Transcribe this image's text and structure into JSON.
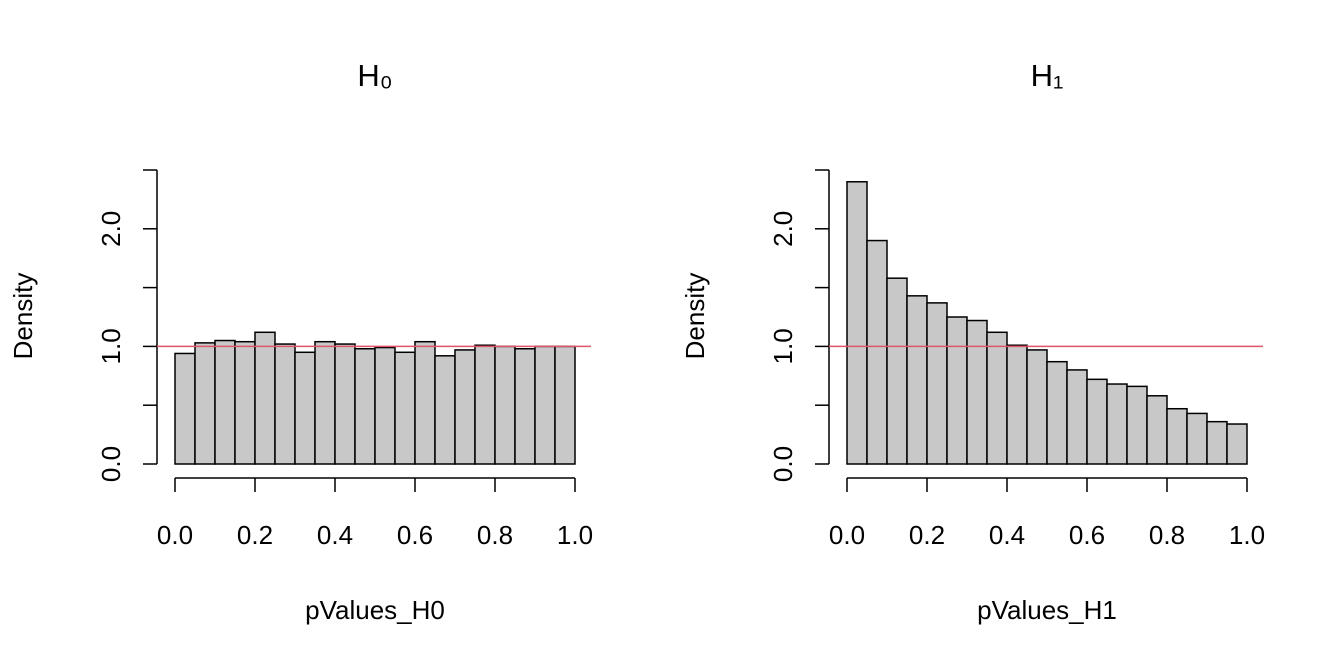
{
  "chart_data": [
    {
      "type": "histogram",
      "title": "H₀",
      "xlabel": "pValues_H0",
      "ylabel": "Density",
      "bins": [
        0,
        0.05,
        0.1,
        0.15,
        0.2,
        0.25,
        0.3,
        0.35,
        0.4,
        0.45,
        0.5,
        0.55,
        0.6,
        0.65,
        0.7,
        0.75,
        0.8,
        0.85,
        0.9,
        0.95,
        1
      ],
      "values": [
        0.94,
        1.03,
        1.05,
        1.04,
        1.12,
        1.02,
        0.95,
        1.04,
        1.02,
        0.98,
        0.99,
        0.95,
        1.04,
        0.92,
        0.97,
        1.01,
        1.0,
        0.98,
        1.0,
        1.0
      ],
      "color": "#c8c8c8",
      "hline": 1,
      "hline_color": "#df536b",
      "xlim": [
        0,
        1
      ],
      "xticks": [
        {
          "value": 0,
          "label": "0.0"
        },
        0.2,
        0.4,
        0.6,
        0.8,
        {
          "value": 1,
          "label": "1.0"
        }
      ],
      "ylim": [
        0,
        2.5
      ],
      "yticks": [
        {
          "value": 0,
          "label": "0.0"
        },
        {
          "value": 0.5,
          "label": null
        },
        {
          "value": 1,
          "label": "1.0"
        },
        {
          "value": 1.5,
          "label": null
        },
        {
          "value": 2,
          "label": "2.0"
        },
        {
          "value": 2.5,
          "label": null
        }
      ]
    },
    {
      "type": "histogram",
      "title": "H₁",
      "xlabel": "pValues_H1",
      "ylabel": "Density",
      "bins": [
        0,
        0.05,
        0.1,
        0.15,
        0.2,
        0.25,
        0.3,
        0.35,
        0.4,
        0.45,
        0.5,
        0.55,
        0.6,
        0.65,
        0.7,
        0.75,
        0.8,
        0.85,
        0.9,
        0.95,
        1
      ],
      "values": [
        2.4,
        1.9,
        1.58,
        1.43,
        1.37,
        1.25,
        1.22,
        1.12,
        1.01,
        0.97,
        0.87,
        0.8,
        0.72,
        0.68,
        0.66,
        0.58,
        0.47,
        0.43,
        0.36,
        0.34
      ],
      "color": "#c8c8c8",
      "hline": 1,
      "hline_color": "#df536b",
      "xlim": [
        0,
        1
      ],
      "xticks": [
        {
          "value": 0,
          "label": "0.0"
        },
        0.2,
        0.4,
        0.6,
        0.8,
        {
          "value": 1,
          "label": "1.0"
        }
      ],
      "ylim": [
        0,
        2.5
      ],
      "yticks": [
        {
          "value": 0,
          "label": "0.0"
        },
        {
          "value": 0.5,
          "label": null
        },
        {
          "value": 1,
          "label": "1.0"
        },
        {
          "value": 1.5,
          "label": null
        },
        {
          "value": 2,
          "label": "2.0"
        },
        {
          "value": 2.5,
          "label": null
        }
      ]
    }
  ]
}
